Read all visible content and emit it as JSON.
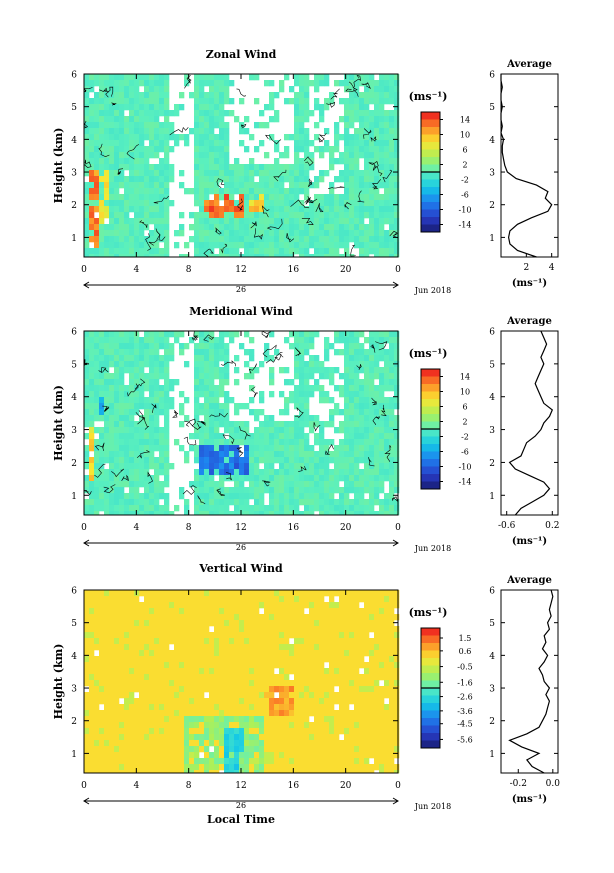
{
  "figure": {
    "x_axis_label": "Local Time",
    "date_label": "Jun 2018",
    "day_label": "26",
    "x_ticks": [
      "0",
      "4",
      "8",
      "12",
      "16",
      "20",
      "0"
    ],
    "height_axis_label": "Height (km)",
    "height_ticks": [
      "1",
      "2",
      "3",
      "4",
      "5",
      "6"
    ],
    "unit_label": "(ms⁻¹)",
    "average_title": "Average"
  },
  "chart_data": [
    {
      "type": "heatmap",
      "title": "Zonal Wind",
      "xlabel": "",
      "ylabel": "Height (km)",
      "x_range_hours": [
        0,
        24
      ],
      "ylim": [
        0.4,
        6
      ],
      "colorbar": {
        "label": "(ms⁻¹)",
        "ticks": [
          14,
          10,
          6,
          2,
          -2,
          -6,
          -10,
          -14
        ],
        "range": [
          -16,
          16
        ]
      },
      "features": [
        {
          "x_hours": [
            0.3,
            0.9
          ],
          "height_km": [
            0.8,
            3.2
          ],
          "value": 12
        },
        {
          "x_hours": [
            8.8,
            12.2
          ],
          "height_km": [
            1.7,
            2.5
          ],
          "value": 13
        },
        {
          "x_hours": [
            12.5,
            13.6
          ],
          "height_km": [
            1.8,
            2.4
          ],
          "value": 9
        },
        {
          "x_hours": [
            0.9,
            1.6
          ],
          "height_km": [
            1.5,
            3.2
          ],
          "value": 7
        }
      ],
      "average_profile": {
        "xlabel": "(ms⁻¹)",
        "x_ticks": [
          "2",
          "4"
        ],
        "xlim": [
          0,
          4.5
        ],
        "height_km": [
          0.4,
          0.6,
          0.8,
          1.0,
          1.2,
          1.4,
          1.6,
          1.8,
          2.0,
          2.2,
          2.4,
          2.6,
          2.8,
          3.0,
          3.2,
          3.4,
          3.6,
          3.8,
          4.0,
          4.2,
          4.4,
          4.6,
          4.8,
          5.0,
          5.2,
          5.4,
          5.6,
          5.8,
          6.0
        ],
        "values": [
          2.8,
          1.3,
          0.7,
          0.6,
          0.7,
          1.3,
          2.4,
          3.7,
          4.0,
          3.5,
          3.7,
          2.8,
          1.2,
          0.5,
          0.3,
          0.2,
          0.1,
          0.1,
          0.2,
          0.0,
          0.1,
          0.0,
          0.0,
          0.1,
          0.0,
          0.0,
          0.1,
          0.0,
          0.0
        ]
      }
    },
    {
      "type": "heatmap",
      "title": "Meridional Wind",
      "xlabel": "",
      "ylabel": "Height (km)",
      "x_range_hours": [
        0,
        24
      ],
      "ylim": [
        0.4,
        6
      ],
      "colorbar": {
        "label": "(ms⁻¹)",
        "ticks": [
          14,
          10,
          6,
          2,
          -2,
          -6,
          -10,
          -14
        ],
        "range": [
          -16,
          16
        ]
      },
      "features": [
        {
          "x_hours": [
            8.5,
            12.5
          ],
          "height_km": [
            1.7,
            2.6
          ],
          "value": -9
        },
        {
          "x_hours": [
            0.3,
            0.7
          ],
          "height_km": [
            1.5,
            3.2
          ],
          "value": 8
        },
        {
          "x_hours": [
            1.0,
            1.4
          ],
          "height_km": [
            3.4,
            4.2
          ],
          "value": -5
        }
      ],
      "average_profile": {
        "xlabel": "(ms⁻¹)",
        "x_ticks": [
          "-0.6",
          "0.2"
        ],
        "xlim": [
          -0.7,
          0.3
        ],
        "height_km": [
          0.4,
          0.6,
          0.8,
          1.0,
          1.2,
          1.4,
          1.6,
          1.8,
          2.0,
          2.2,
          2.4,
          2.6,
          2.8,
          3.0,
          3.2,
          3.4,
          3.6,
          3.8,
          4.0,
          4.2,
          4.4,
          4.6,
          4.8,
          5.0,
          5.2,
          5.4,
          5.6,
          5.8,
          6.0
        ],
        "values": [
          -0.45,
          -0.35,
          -0.15,
          0.05,
          0.15,
          0.05,
          -0.2,
          -0.45,
          -0.55,
          -0.35,
          -0.3,
          -0.25,
          -0.1,
          0.0,
          0.05,
          0.15,
          0.2,
          0.05,
          0.0,
          -0.05,
          -0.1,
          -0.05,
          0.0,
          0.05,
          0.0,
          0.05,
          0.1,
          0.05,
          0.0
        ]
      }
    },
    {
      "type": "heatmap",
      "title": "Vertical Wind",
      "xlabel": "Local Time",
      "ylabel": "Height (km)",
      "x_range_hours": [
        0,
        24
      ],
      "ylim": [
        0.4,
        6
      ],
      "colorbar": {
        "label": "(ms⁻¹)",
        "ticks": [
          1.5,
          0.6,
          -0.5,
          -1.6,
          -2.6,
          -3.6,
          -4.5,
          -5.6
        ],
        "range": [
          -6.2,
          2.2
        ]
      },
      "features": [
        {
          "x_hours": [
            7.5,
            13.5
          ],
          "height_km": [
            0.4,
            2.2
          ],
          "value": -1.3
        },
        {
          "x_hours": [
            10.5,
            12.0
          ],
          "height_km": [
            0.4,
            1.8
          ],
          "value": -2.8
        },
        {
          "x_hours": [
            13.5,
            16.0
          ],
          "height_km": [
            2.2,
            3.2
          ],
          "value": 0.9
        }
      ],
      "average_profile": {
        "xlabel": "(ms⁻¹)",
        "x_ticks": [
          "-0.2",
          "0.0"
        ],
        "xlim": [
          -0.3,
          0.03
        ],
        "height_km": [
          0.4,
          0.6,
          0.8,
          1.0,
          1.2,
          1.4,
          1.6,
          1.8,
          2.0,
          2.2,
          2.4,
          2.6,
          2.8,
          3.0,
          3.2,
          3.4,
          3.6,
          3.8,
          4.0,
          4.2,
          4.4,
          4.6,
          4.8,
          5.0,
          5.2,
          5.4,
          5.6,
          5.8,
          6.0
        ],
        "values": [
          -0.05,
          -0.12,
          -0.15,
          -0.08,
          -0.18,
          -0.25,
          -0.15,
          -0.08,
          -0.06,
          -0.04,
          -0.03,
          -0.02,
          -0.04,
          -0.02,
          -0.05,
          -0.06,
          -0.08,
          -0.05,
          -0.03,
          -0.06,
          -0.04,
          -0.05,
          -0.02,
          -0.03,
          -0.01,
          -0.02,
          -0.01,
          0.0,
          -0.01
        ]
      }
    }
  ]
}
